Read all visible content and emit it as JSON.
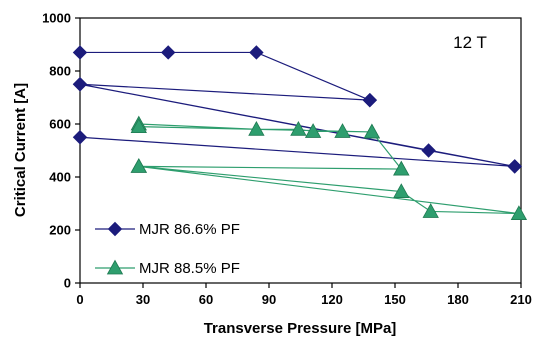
{
  "chart_data": {
    "type": "line",
    "annotation": "12 T",
    "xlabel": "Transverse Pressure [MPa]",
    "ylabel": "Critical Current [A]",
    "xlim": [
      0,
      210
    ],
    "ylim": [
      0,
      1000
    ],
    "x_ticks": [
      0,
      30,
      60,
      90,
      120,
      150,
      180,
      210
    ],
    "y_ticks": [
      0,
      200,
      400,
      600,
      800,
      1000
    ],
    "grid": false,
    "legend_position": "bottom-left",
    "series": [
      {
        "name": "MJR 86.6% PF",
        "color": "#1c1c7c",
        "marker": "diamond",
        "points": [
          [
            0,
            870
          ],
          [
            42,
            870
          ],
          [
            84,
            870
          ],
          [
            138,
            690
          ],
          [
            0,
            750
          ],
          [
            166,
            500
          ],
          [
            207,
            440
          ],
          [
            0,
            550
          ],
          [
            207,
            440
          ],
          [
            0,
            750
          ],
          [
            138,
            690
          ]
        ]
      },
      {
        "name": "MJR 88.5% PF",
        "color": "#2e9e6e",
        "marker": "triangle",
        "points": [
          [
            28,
            600
          ],
          [
            84,
            580
          ],
          [
            104,
            580
          ],
          [
            111,
            572
          ],
          [
            125,
            572
          ],
          [
            139,
            570
          ],
          [
            153,
            430
          ],
          [
            28,
            440
          ],
          [
            153,
            345
          ],
          [
            167,
            270
          ],
          [
            209,
            262
          ],
          [
            28,
            440
          ],
          [
            153,
            430
          ],
          [
            139,
            570
          ],
          [
            28,
            590
          ]
        ]
      }
    ]
  }
}
